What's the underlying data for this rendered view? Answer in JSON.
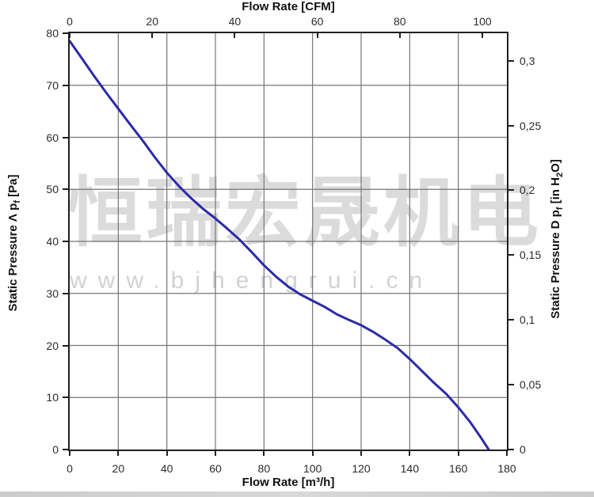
{
  "watermark": {
    "line1": "恒瑞宏晟机电",
    "line2": "www.bjhengrui.cn"
  },
  "chart_data": {
    "type": "line",
    "title": "",
    "grid": true,
    "legend": "none",
    "series": [
      {
        "name": "static-pressure-vs-flow",
        "color": "#2b2ba8",
        "points": [
          [
            0,
            78.5
          ],
          [
            5,
            75.2
          ],
          [
            10,
            71.8
          ],
          [
            15,
            68.6
          ],
          [
            20,
            65.5
          ],
          [
            25,
            62.4
          ],
          [
            30,
            59.4
          ],
          [
            35,
            56.2
          ],
          [
            40,
            53.2
          ],
          [
            45,
            50.6
          ],
          [
            50,
            48.3
          ],
          [
            55,
            46.2
          ],
          [
            60,
            44.4
          ],
          [
            65,
            42.4
          ],
          [
            70,
            40.3
          ],
          [
            75,
            37.9
          ],
          [
            80,
            35.4
          ],
          [
            85,
            33.2
          ],
          [
            90,
            31.3
          ],
          [
            95,
            29.8
          ],
          [
            100,
            28.6
          ],
          [
            105,
            27.4
          ],
          [
            110,
            26.0
          ],
          [
            115,
            24.9
          ],
          [
            120,
            23.9
          ],
          [
            125,
            22.6
          ],
          [
            130,
            21.1
          ],
          [
            135,
            19.5
          ],
          [
            140,
            17.4
          ],
          [
            145,
            15.1
          ],
          [
            150,
            12.8
          ],
          [
            155,
            10.7
          ],
          [
            160,
            8.1
          ],
          [
            165,
            5.2
          ],
          [
            169,
            2.5
          ],
          [
            172.5,
            0
          ]
        ]
      }
    ],
    "bottom_axis": {
      "label": "Flow Rate [m³/h]",
      "min": 0,
      "max": 180,
      "ticks": [
        0,
        20,
        40,
        60,
        80,
        100,
        120,
        140,
        160,
        180
      ]
    },
    "top_axis": {
      "label": "Flow Rate [CFM]",
      "ticks": [
        0,
        20,
        40,
        60,
        80,
        100
      ],
      "m3h_per_cfm": 1.699
    },
    "left_axis": {
      "label_main": "Static Pressure Λ p",
      "label_sub": "f",
      "label_unit": " [Pa]",
      "min": 0,
      "max": 80,
      "ticks": [
        0,
        10,
        20,
        30,
        40,
        50,
        60,
        70,
        80
      ]
    },
    "right_axis": {
      "label_main": "Static Pressure D p",
      "label_sub": "f",
      "label_unit_pre": " [in H",
      "label_unit_sub": "2",
      "label_unit_post": "O]",
      "pa_per_inh2o": 249.089,
      "ticks": [
        {
          "label": "0",
          "value": 0
        },
        {
          "label": "0,05",
          "value": 0.05
        },
        {
          "label": "0,1",
          "value": 0.1
        },
        {
          "label": "0,15",
          "value": 0.15
        },
        {
          "label": "0,2",
          "value": 0.2
        },
        {
          "label": "0,25",
          "value": 0.25
        },
        {
          "label": "0,3",
          "value": 0.3
        }
      ]
    },
    "colors": {
      "curve": "#2b2ba8",
      "grid": "#757575",
      "frame": "#1f1f1f",
      "watermark": "#dbdbdb"
    }
  }
}
